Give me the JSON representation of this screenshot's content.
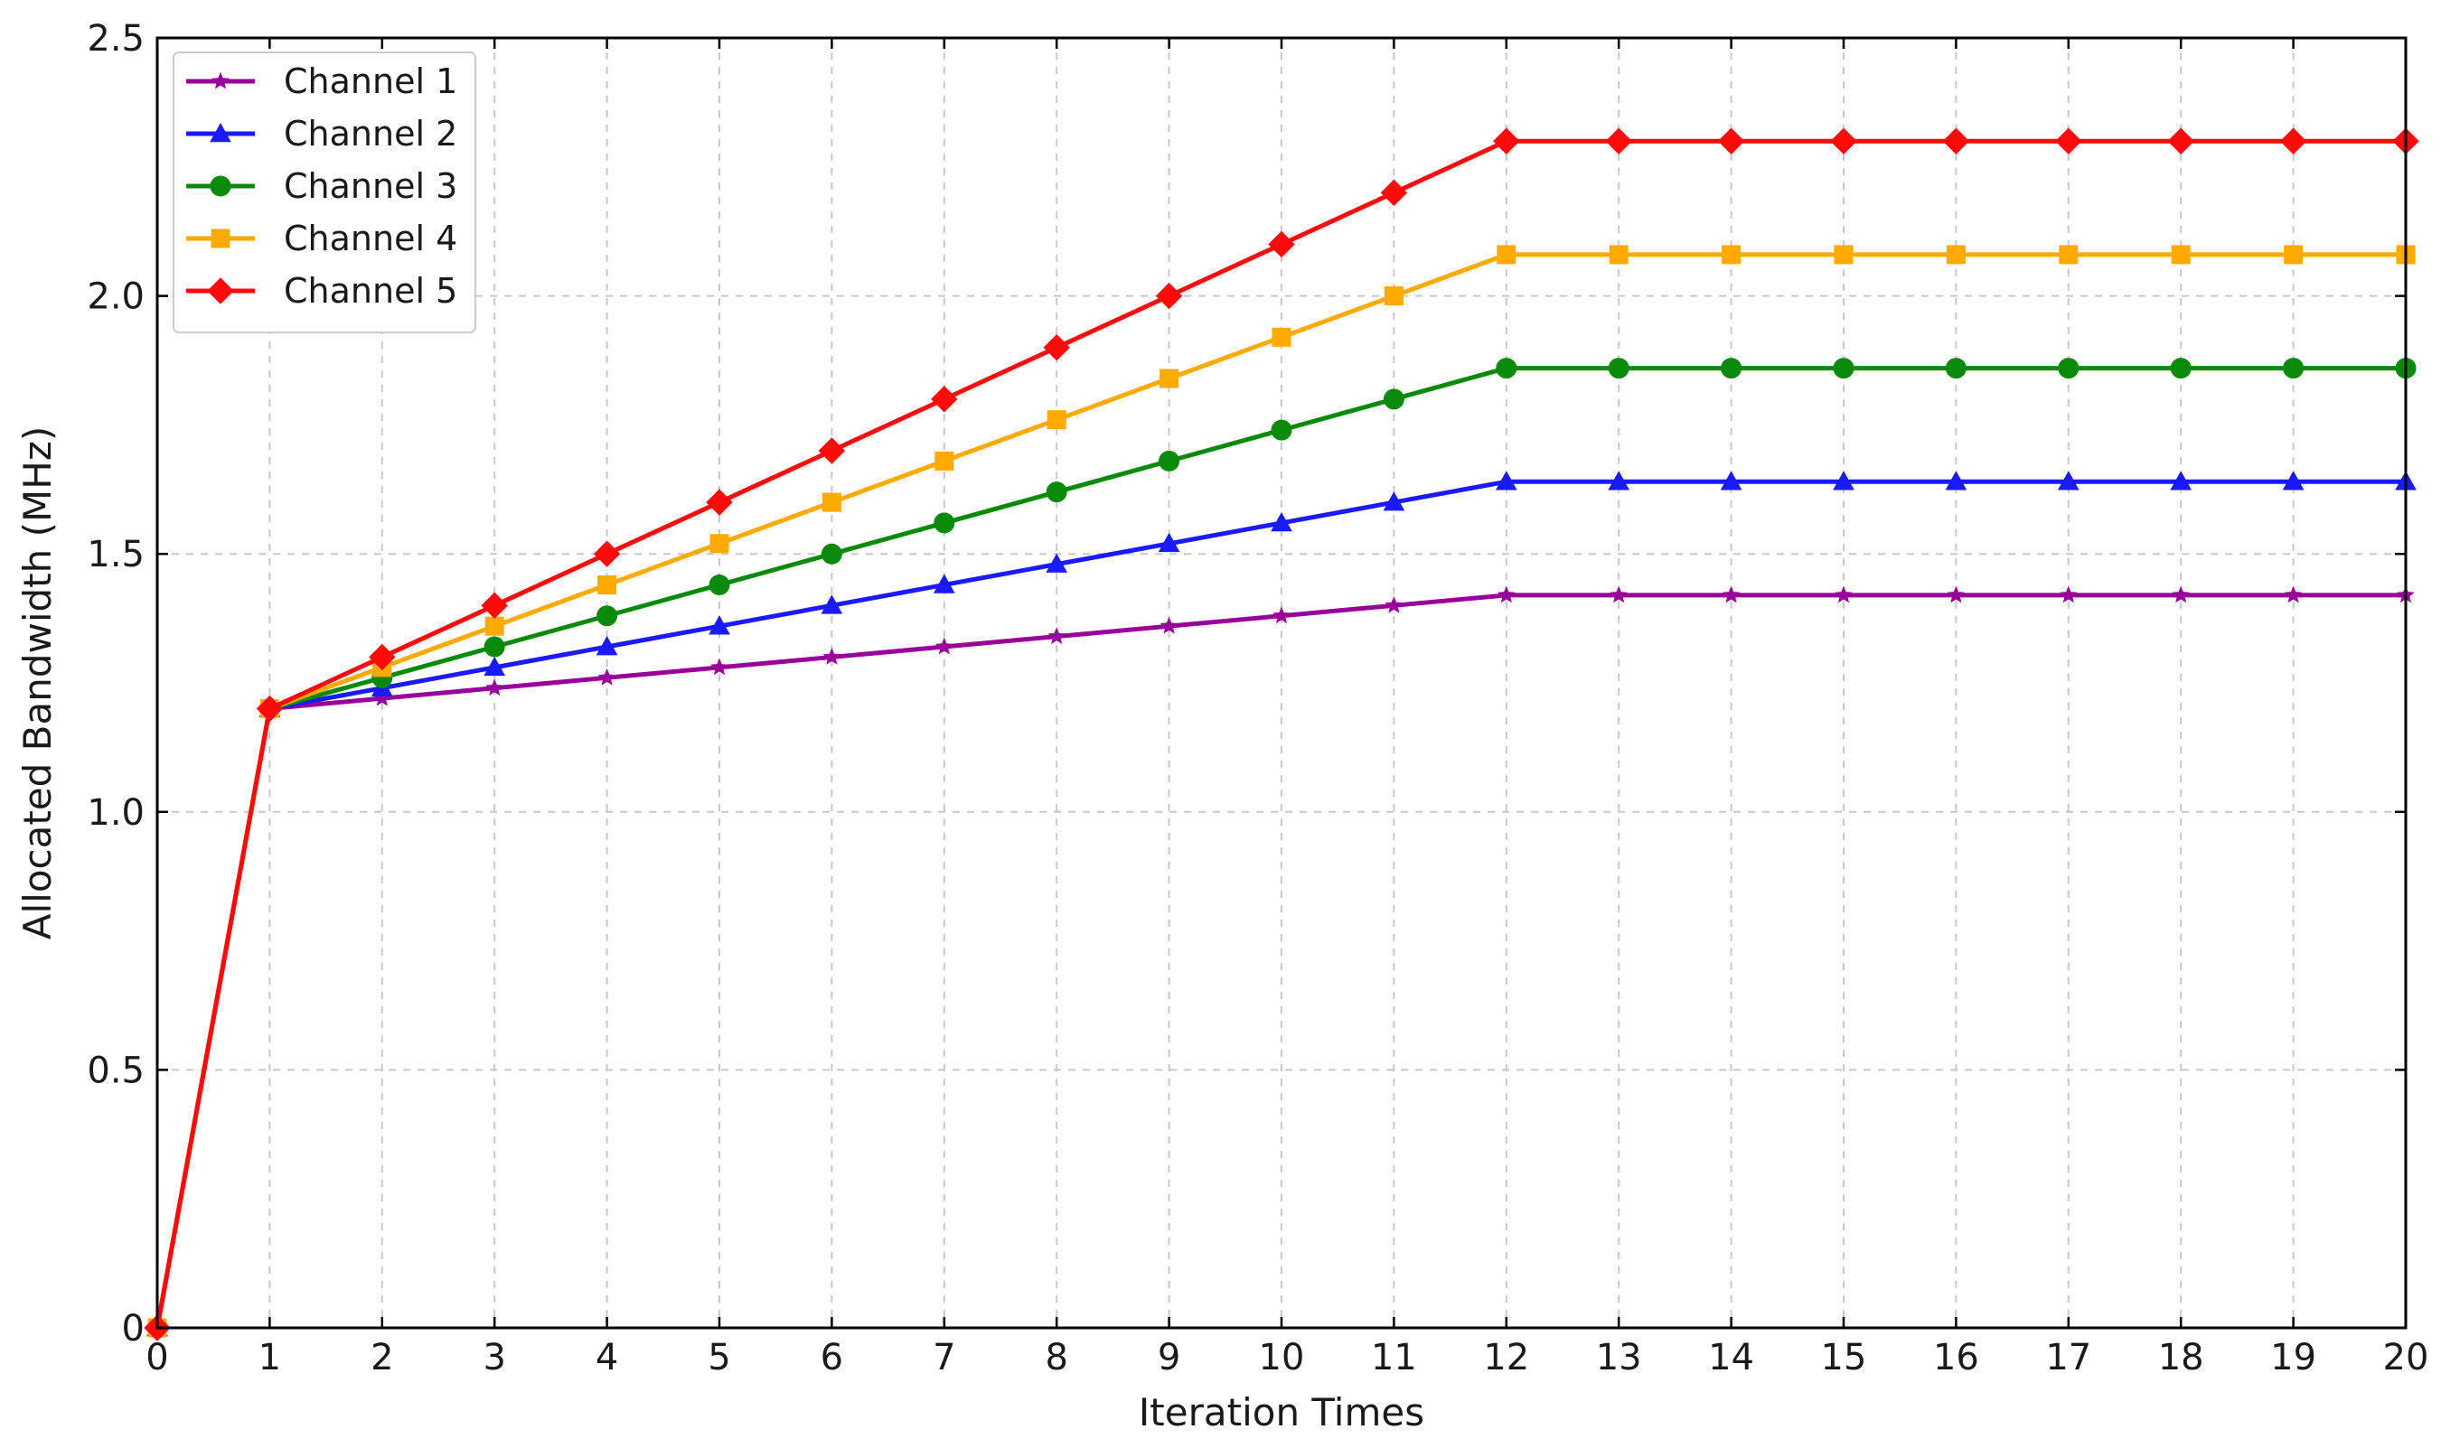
{
  "chart_data": {
    "type": "line",
    "xlabel": "Iteration Times",
    "ylabel": "Allocated Bandwidth (MHz)",
    "xlim": [
      0,
      20
    ],
    "ylim": [
      0,
      2.5
    ],
    "x_ticks": [
      0,
      1,
      2,
      3,
      4,
      5,
      6,
      7,
      8,
      9,
      10,
      11,
      12,
      13,
      14,
      15,
      16,
      17,
      18,
      19,
      20
    ],
    "y_ticks": [
      {
        "value": 0,
        "label": "0"
      },
      {
        "value": 0.5,
        "label": "0.5"
      },
      {
        "value": 1.0,
        "label": "1.0"
      },
      {
        "value": 1.5,
        "label": "1.5"
      },
      {
        "value": 2.0,
        "label": "2.0"
      },
      {
        "value": 2.5,
        "label": "2.5"
      }
    ],
    "grid": true,
    "legend_position": "top-left",
    "x": [
      0,
      1,
      2,
      3,
      4,
      5,
      6,
      7,
      8,
      9,
      10,
      11,
      12,
      13,
      14,
      15,
      16,
      17,
      18,
      19,
      20
    ],
    "series": [
      {
        "name": "Channel 1",
        "color": "#990099",
        "marker": "star",
        "values": [
          0,
          1.2,
          1.22,
          1.24,
          1.26,
          1.28,
          1.3,
          1.32,
          1.34,
          1.36,
          1.38,
          1.4,
          1.42,
          1.42,
          1.42,
          1.42,
          1.42,
          1.42,
          1.42,
          1.42,
          1.42
        ]
      },
      {
        "name": "Channel 2",
        "color": "#1a1aff",
        "marker": "triangle",
        "values": [
          0,
          1.2,
          1.24,
          1.28,
          1.32,
          1.36,
          1.4,
          1.44,
          1.48,
          1.52,
          1.56,
          1.6,
          1.64,
          1.64,
          1.64,
          1.64,
          1.64,
          1.64,
          1.64,
          1.64,
          1.64
        ]
      },
      {
        "name": "Channel 3",
        "color": "#0a8a0a",
        "marker": "circle",
        "values": [
          0,
          1.2,
          1.26,
          1.32,
          1.38,
          1.44,
          1.5,
          1.56,
          1.62,
          1.68,
          1.74,
          1.8,
          1.86,
          1.86,
          1.86,
          1.86,
          1.86,
          1.86,
          1.86,
          1.86,
          1.86
        ]
      },
      {
        "name": "Channel 4",
        "color": "#ffaa00",
        "marker": "square",
        "values": [
          0,
          1.2,
          1.28,
          1.36,
          1.44,
          1.52,
          1.6,
          1.68,
          1.76,
          1.84,
          1.92,
          2.0,
          2.08,
          2.08,
          2.08,
          2.08,
          2.08,
          2.08,
          2.08,
          2.08,
          2.08
        ]
      },
      {
        "name": "Channel 5",
        "color": "#ff0a0a",
        "marker": "diamond",
        "values": [
          0,
          1.2,
          1.3,
          1.4,
          1.5,
          1.6,
          1.7,
          1.8,
          1.9,
          2.0,
          2.1,
          2.2,
          2.3,
          2.3,
          2.3,
          2.3,
          2.3,
          2.3,
          2.3,
          2.3,
          2.3
        ]
      }
    ]
  }
}
